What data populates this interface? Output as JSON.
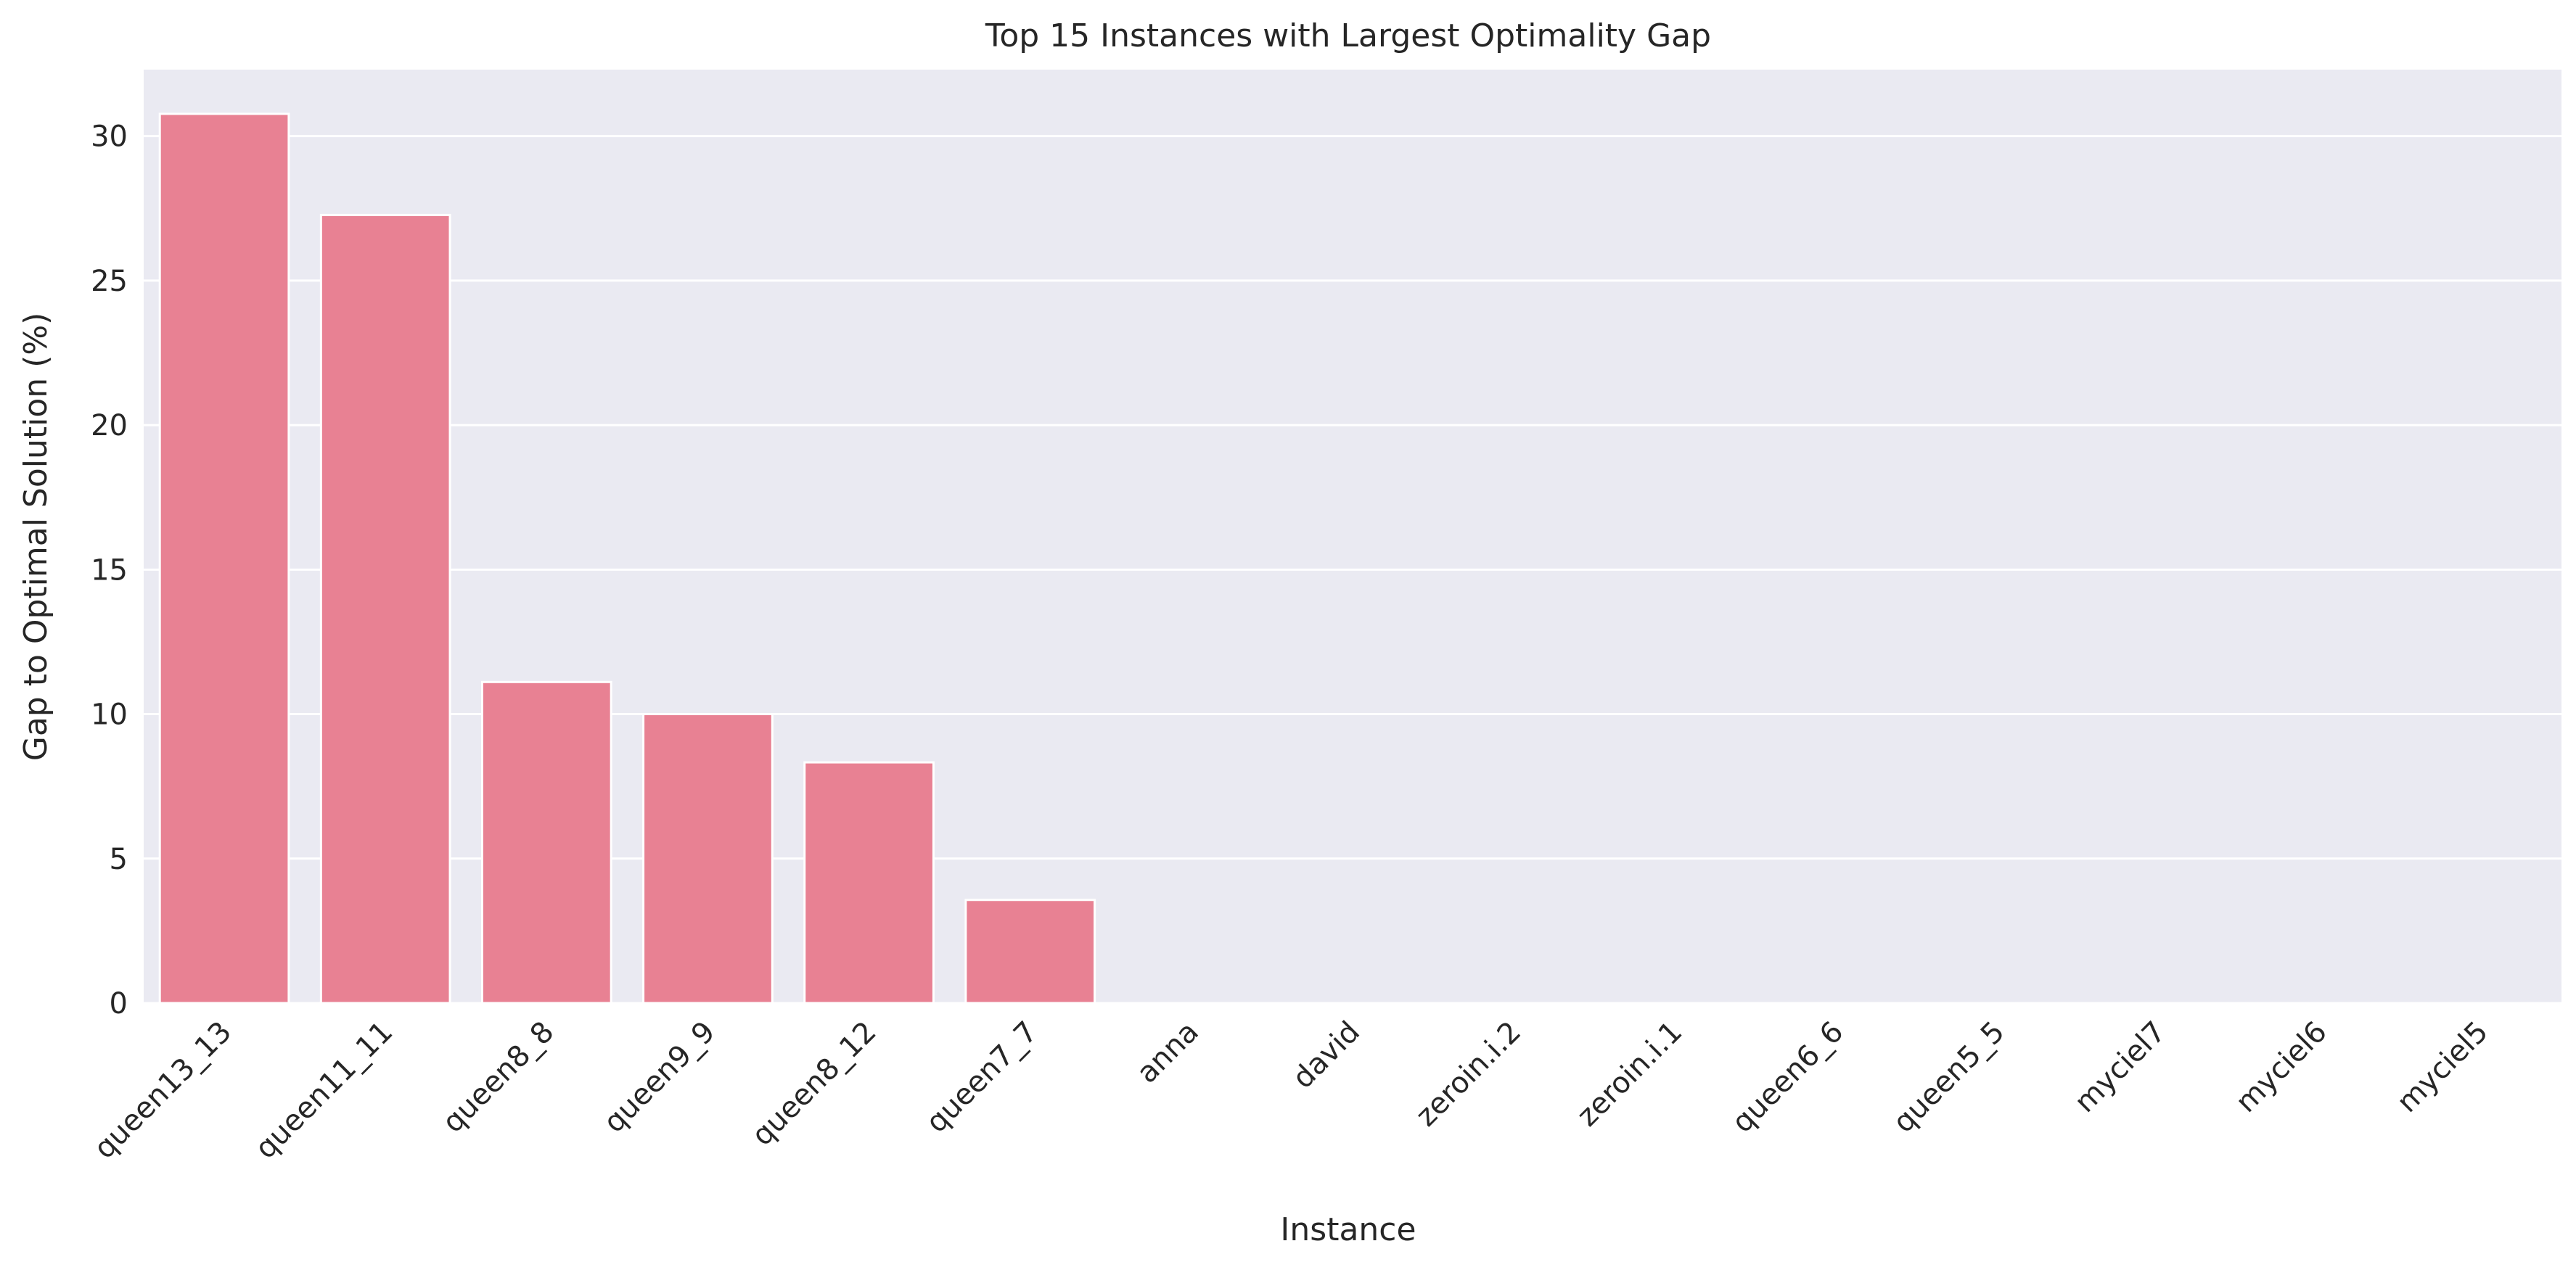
{
  "chart_data": {
    "type": "bar",
    "title": "Top 15 Instances with Largest Optimality Gap",
    "xlabel": "Instance",
    "ylabel": "Gap to Optimal Solution (%)",
    "categories": [
      "queen13_13",
      "queen11_11",
      "queen8_8",
      "queen9_9",
      "queen8_12",
      "queen7_7",
      "anna",
      "david",
      "zeroin.i.2",
      "zeroin.i.1",
      "queen6_6",
      "queen5_5",
      "myciel7",
      "myciel6",
      "myciel5"
    ],
    "values": [
      30.77,
      27.27,
      11.11,
      10.0,
      8.33,
      3.57,
      0,
      0,
      0,
      0,
      0,
      0,
      0,
      0,
      0
    ],
    "ylim": [
      0,
      32.3
    ],
    "yticks": [
      0,
      5,
      10,
      15,
      20,
      25,
      30
    ],
    "grid": true,
    "legend": "none",
    "colors": {
      "bar": "#e88193",
      "plot_bg": "#eaeaf2",
      "grid": "#ffffff",
      "text": "#262626"
    }
  }
}
